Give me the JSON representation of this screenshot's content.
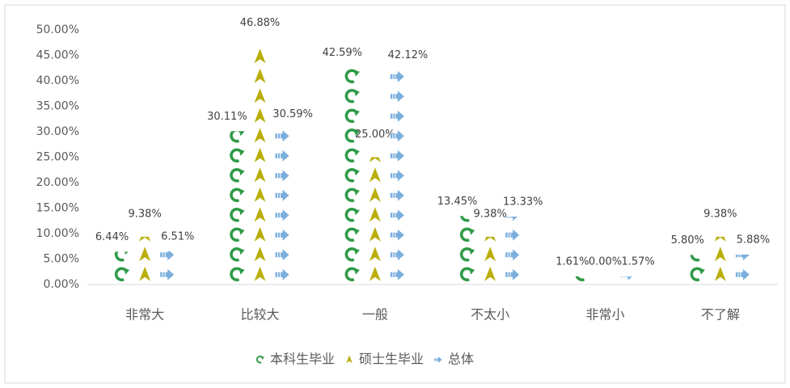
{
  "chart_data": {
    "type": "pictograph-bar",
    "categories": [
      "非常大",
      "比较大",
      "一般",
      "不太小",
      "非常小",
      "不了解"
    ],
    "series": [
      {
        "name": "本科生毕业",
        "color": "#2e9a46",
        "values": [
          6.44,
          30.11,
          42.59,
          13.45,
          1.61,
          5.8
        ],
        "value_labels": [
          "6.44%",
          "30.11%",
          "42.59%",
          "13.45%",
          "1.61%",
          "5.80%"
        ]
      },
      {
        "name": "硕士生毕业",
        "color": "#b9ae0a",
        "values": [
          9.38,
          46.88,
          25.0,
          9.38,
          0.0,
          9.38
        ],
        "value_labels": [
          "9.38%",
          "46.88%",
          "25.00%",
          "9.38%",
          "0.00%",
          "9.38%"
        ]
      },
      {
        "name": "总体",
        "color": "#7aaedd",
        "values": [
          6.51,
          30.59,
          42.12,
          13.33,
          1.57,
          5.88
        ],
        "value_labels": [
          "6.51%",
          "30.59%",
          "42.12%",
          "13.33%",
          "1.57%",
          "5.88%"
        ]
      }
    ],
    "ylim": [
      0,
      50
    ],
    "yticks": [
      {
        "value": 0,
        "label": "0.00%"
      },
      {
        "value": 5,
        "label": "5.00%"
      },
      {
        "value": 10,
        "label": "10.00%"
      },
      {
        "value": 15,
        "label": "15.00%"
      },
      {
        "value": 20,
        "label": "20.00%"
      },
      {
        "value": 25,
        "label": "25.00%"
      },
      {
        "value": 30,
        "label": "30.00%"
      },
      {
        "value": 35,
        "label": "35.00%"
      },
      {
        "value": 40,
        "label": "40.00%"
      },
      {
        "value": 45,
        "label": "45.00%"
      },
      {
        "value": 50,
        "label": "50.00%"
      }
    ],
    "legend": "bottom"
  }
}
